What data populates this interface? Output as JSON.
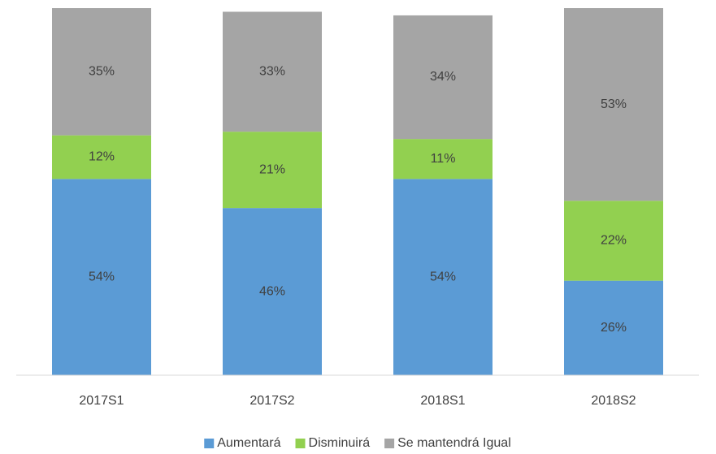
{
  "chart_data": {
    "type": "stacked-bar",
    "categories": [
      "2017S1",
      "2017S2",
      "2018S1",
      "2018S2"
    ],
    "series": [
      {
        "name": "Aumentará",
        "color": "#5b9bd5",
        "values": [
          54,
          46,
          54,
          26
        ],
        "value_labels": [
          "54%",
          "46%",
          "54%",
          "26%"
        ]
      },
      {
        "name": "Disminuirá",
        "color": "#92d050",
        "values": [
          12,
          21,
          11,
          22
        ],
        "value_labels": [
          "12%",
          "21%",
          "11%",
          "22%"
        ]
      },
      {
        "name": "Se mantendrá Igual",
        "color": "#a5a5a5",
        "values": [
          35,
          33,
          34,
          53
        ],
        "value_labels": [
          "35%",
          "33%",
          "34%",
          "53%"
        ]
      }
    ],
    "legend": "bottom"
  }
}
